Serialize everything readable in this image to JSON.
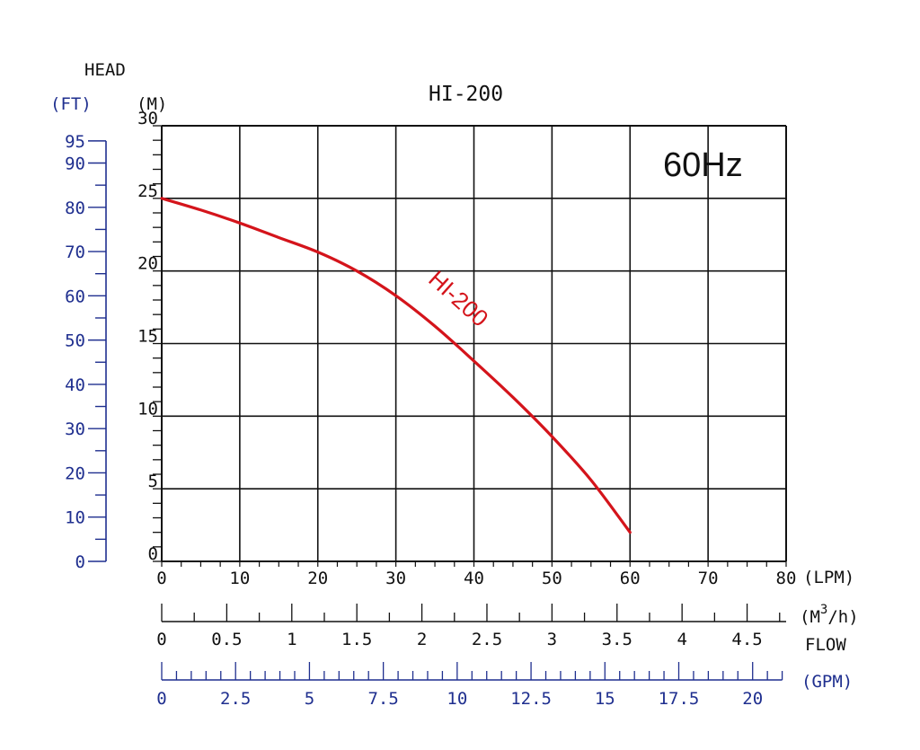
{
  "chart_data": {
    "type": "line",
    "title": "HI-200",
    "frequency_label": "60Hz",
    "head_label": "HEAD",
    "y_unit_m": "(M)",
    "y_unit_ft": "(FT)",
    "flow_label": "FLOW",
    "x_unit_lpm": "(LPM)",
    "x_unit_m3h_pre": "(M",
    "x_unit_m3h_sup": "3",
    "x_unit_m3h_post": "/h)",
    "x_unit_gpm": "(GPM)",
    "xlim": [
      0,
      80
    ],
    "ylim": [
      0,
      30
    ],
    "x_ticks_lpm": [
      "0",
      "10",
      "20",
      "30",
      "40",
      "50",
      "60",
      "70",
      "80"
    ],
    "y_ticks_m": [
      "0",
      "5",
      "10",
      "15",
      "20",
      "25",
      "30"
    ],
    "y_ticks_ft": [
      "0",
      "10",
      "20",
      "30",
      "40",
      "50",
      "60",
      "70",
      "80",
      "90",
      "95"
    ],
    "x_ticks_m3h": [
      "0",
      "0.5",
      "1",
      "1.5",
      "2",
      "2.5",
      "3",
      "3.5",
      "4",
      "4.5"
    ],
    "x_ticks_gpm": [
      "0",
      "2.5",
      "5",
      "7.5",
      "10",
      "12.5",
      "15",
      "17.5",
      "20"
    ],
    "grid": true,
    "colors": {
      "curve": "#d4141b",
      "secondary_axes": "#1f2f8f",
      "grid": "#111111"
    },
    "series": [
      {
        "name": "HI-200",
        "x": [
          0,
          5,
          10,
          15,
          20,
          25,
          30,
          35,
          40,
          45,
          50,
          55,
          60
        ],
        "y": [
          25.0,
          24.2,
          23.3,
          22.3,
          21.3,
          20.0,
          18.3,
          16.2,
          13.8,
          11.3,
          8.6,
          5.6,
          2.0
        ]
      }
    ]
  }
}
